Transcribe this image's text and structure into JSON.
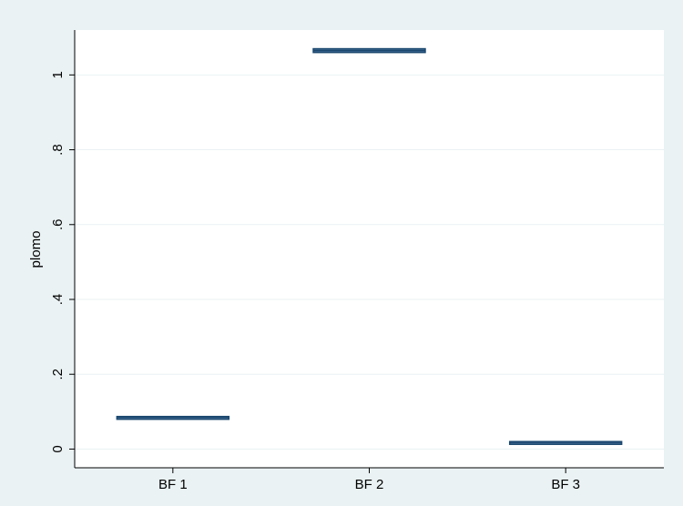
{
  "chart_data": {
    "type": "box",
    "title": "",
    "xlabel": "",
    "ylabel": "plomo",
    "categories": [
      "BF 1",
      "BF 2",
      "BF 3"
    ],
    "values": [
      0.085,
      1.065,
      0.018
    ],
    "box_ranges": [
      [
        0.083,
        0.087
      ],
      [
        1.06,
        1.07
      ],
      [
        0.016,
        0.02
      ]
    ],
    "ylim": [
      -0.05,
      1.12
    ],
    "yticks": [
      0,
      0.2,
      0.4,
      0.6,
      0.8,
      1
    ],
    "ytick_labels": [
      "0",
      ".2",
      ".4",
      ".6",
      ".8",
      "1"
    ],
    "grid": true,
    "legend": "none",
    "colors": {
      "background": "#eaf2f3",
      "plot_area": "#ffffff",
      "grid": "#eaf2f3",
      "box_fill": "#4a7198",
      "box_edge": "#1a476f"
    }
  }
}
